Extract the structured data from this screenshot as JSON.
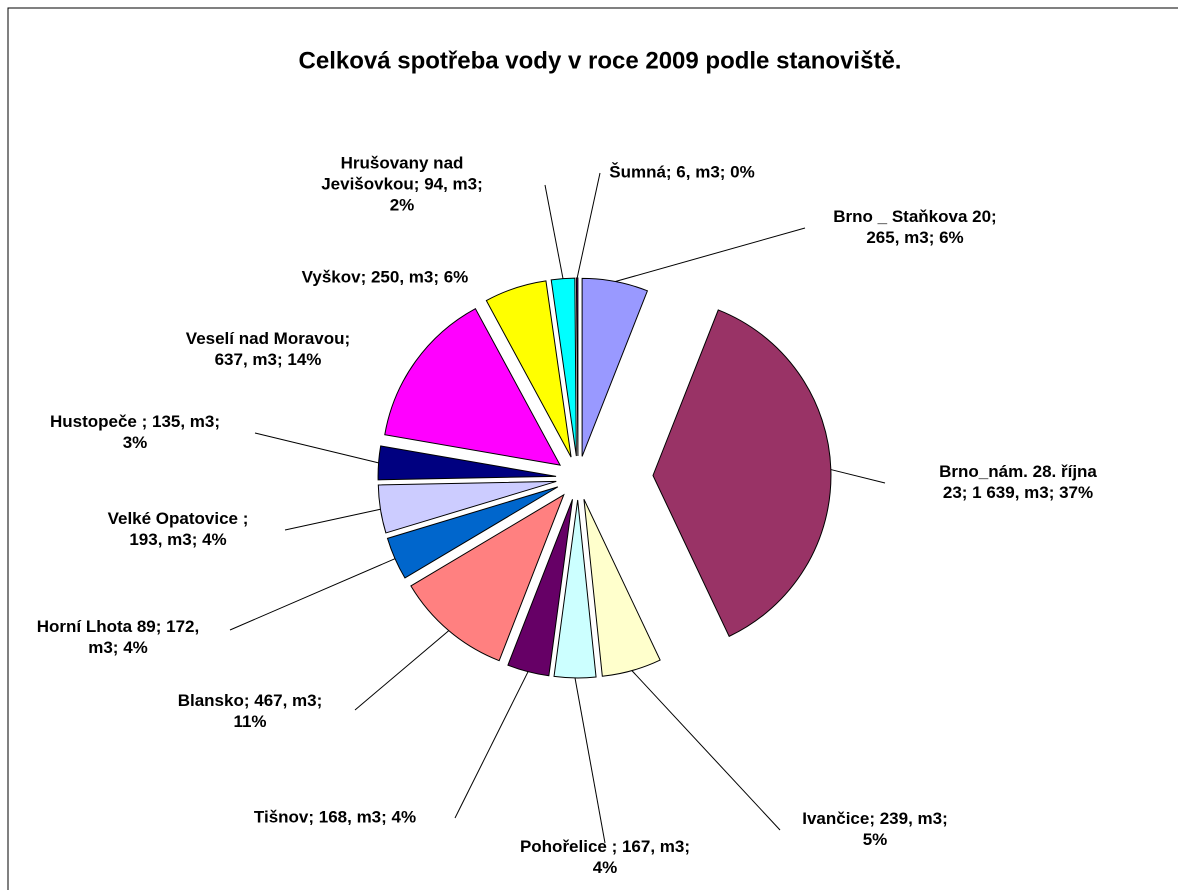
{
  "chart_data": {
    "type": "pie",
    "title": "Celková spotřeba vody v roce 2009 podle stanoviště.",
    "values": [
      265,
      1639,
      239,
      167,
      168,
      467,
      172,
      193,
      135,
      637,
      250,
      94,
      6
    ],
    "value_labels": [
      [
        "Brno _ Staňkova 20;",
        "265, m3; 6%"
      ],
      [
        "Brno_nám. 28. října",
        "23; 1 639, m3; 37%"
      ],
      [
        "Ivančice; 239, m3;",
        "5%"
      ],
      [
        "Pohořelice ; 167, m3;",
        "4%"
      ],
      [
        "Tišnov; 168, m3; 4%"
      ],
      [
        "Blansko; 467, m3;",
        "11%"
      ],
      [
        "Horní Lhota 89; 172,",
        "m3; 4%"
      ],
      [
        "Velké Opatovice ;",
        "193, m3; 4%"
      ],
      [
        "Hustopeče ; 135, m3;",
        "3%"
      ],
      [
        "Veselí nad Moravou;",
        "637, m3; 14%"
      ],
      [
        "Vyškov; 250, m3; 6%"
      ],
      [
        "Hrušovany nad",
        "Jevišovkou; 94, m3;",
        "2%"
      ],
      [
        "Šumná; 6, m3; 0%"
      ]
    ],
    "colors": [
      "#9999ff",
      "#993366",
      "#ffffcc",
      "#ccffff",
      "#660066",
      "#ff8080",
      "#0066cc",
      "#ccccff",
      "#000080",
      "#ff00ff",
      "#ffff00",
      "#00ffff",
      "#800080"
    ]
  }
}
